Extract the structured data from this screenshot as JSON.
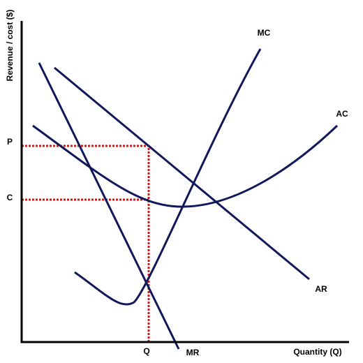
{
  "axes": {
    "y_label": "Revenue / cost ($)",
    "x_label": "Quantity (Q)"
  },
  "ticks": {
    "p": "P",
    "c": "C",
    "q": "Q"
  },
  "curves": {
    "mc": "MC",
    "ac": "AC",
    "ar": "AR",
    "mr": "MR"
  }
}
